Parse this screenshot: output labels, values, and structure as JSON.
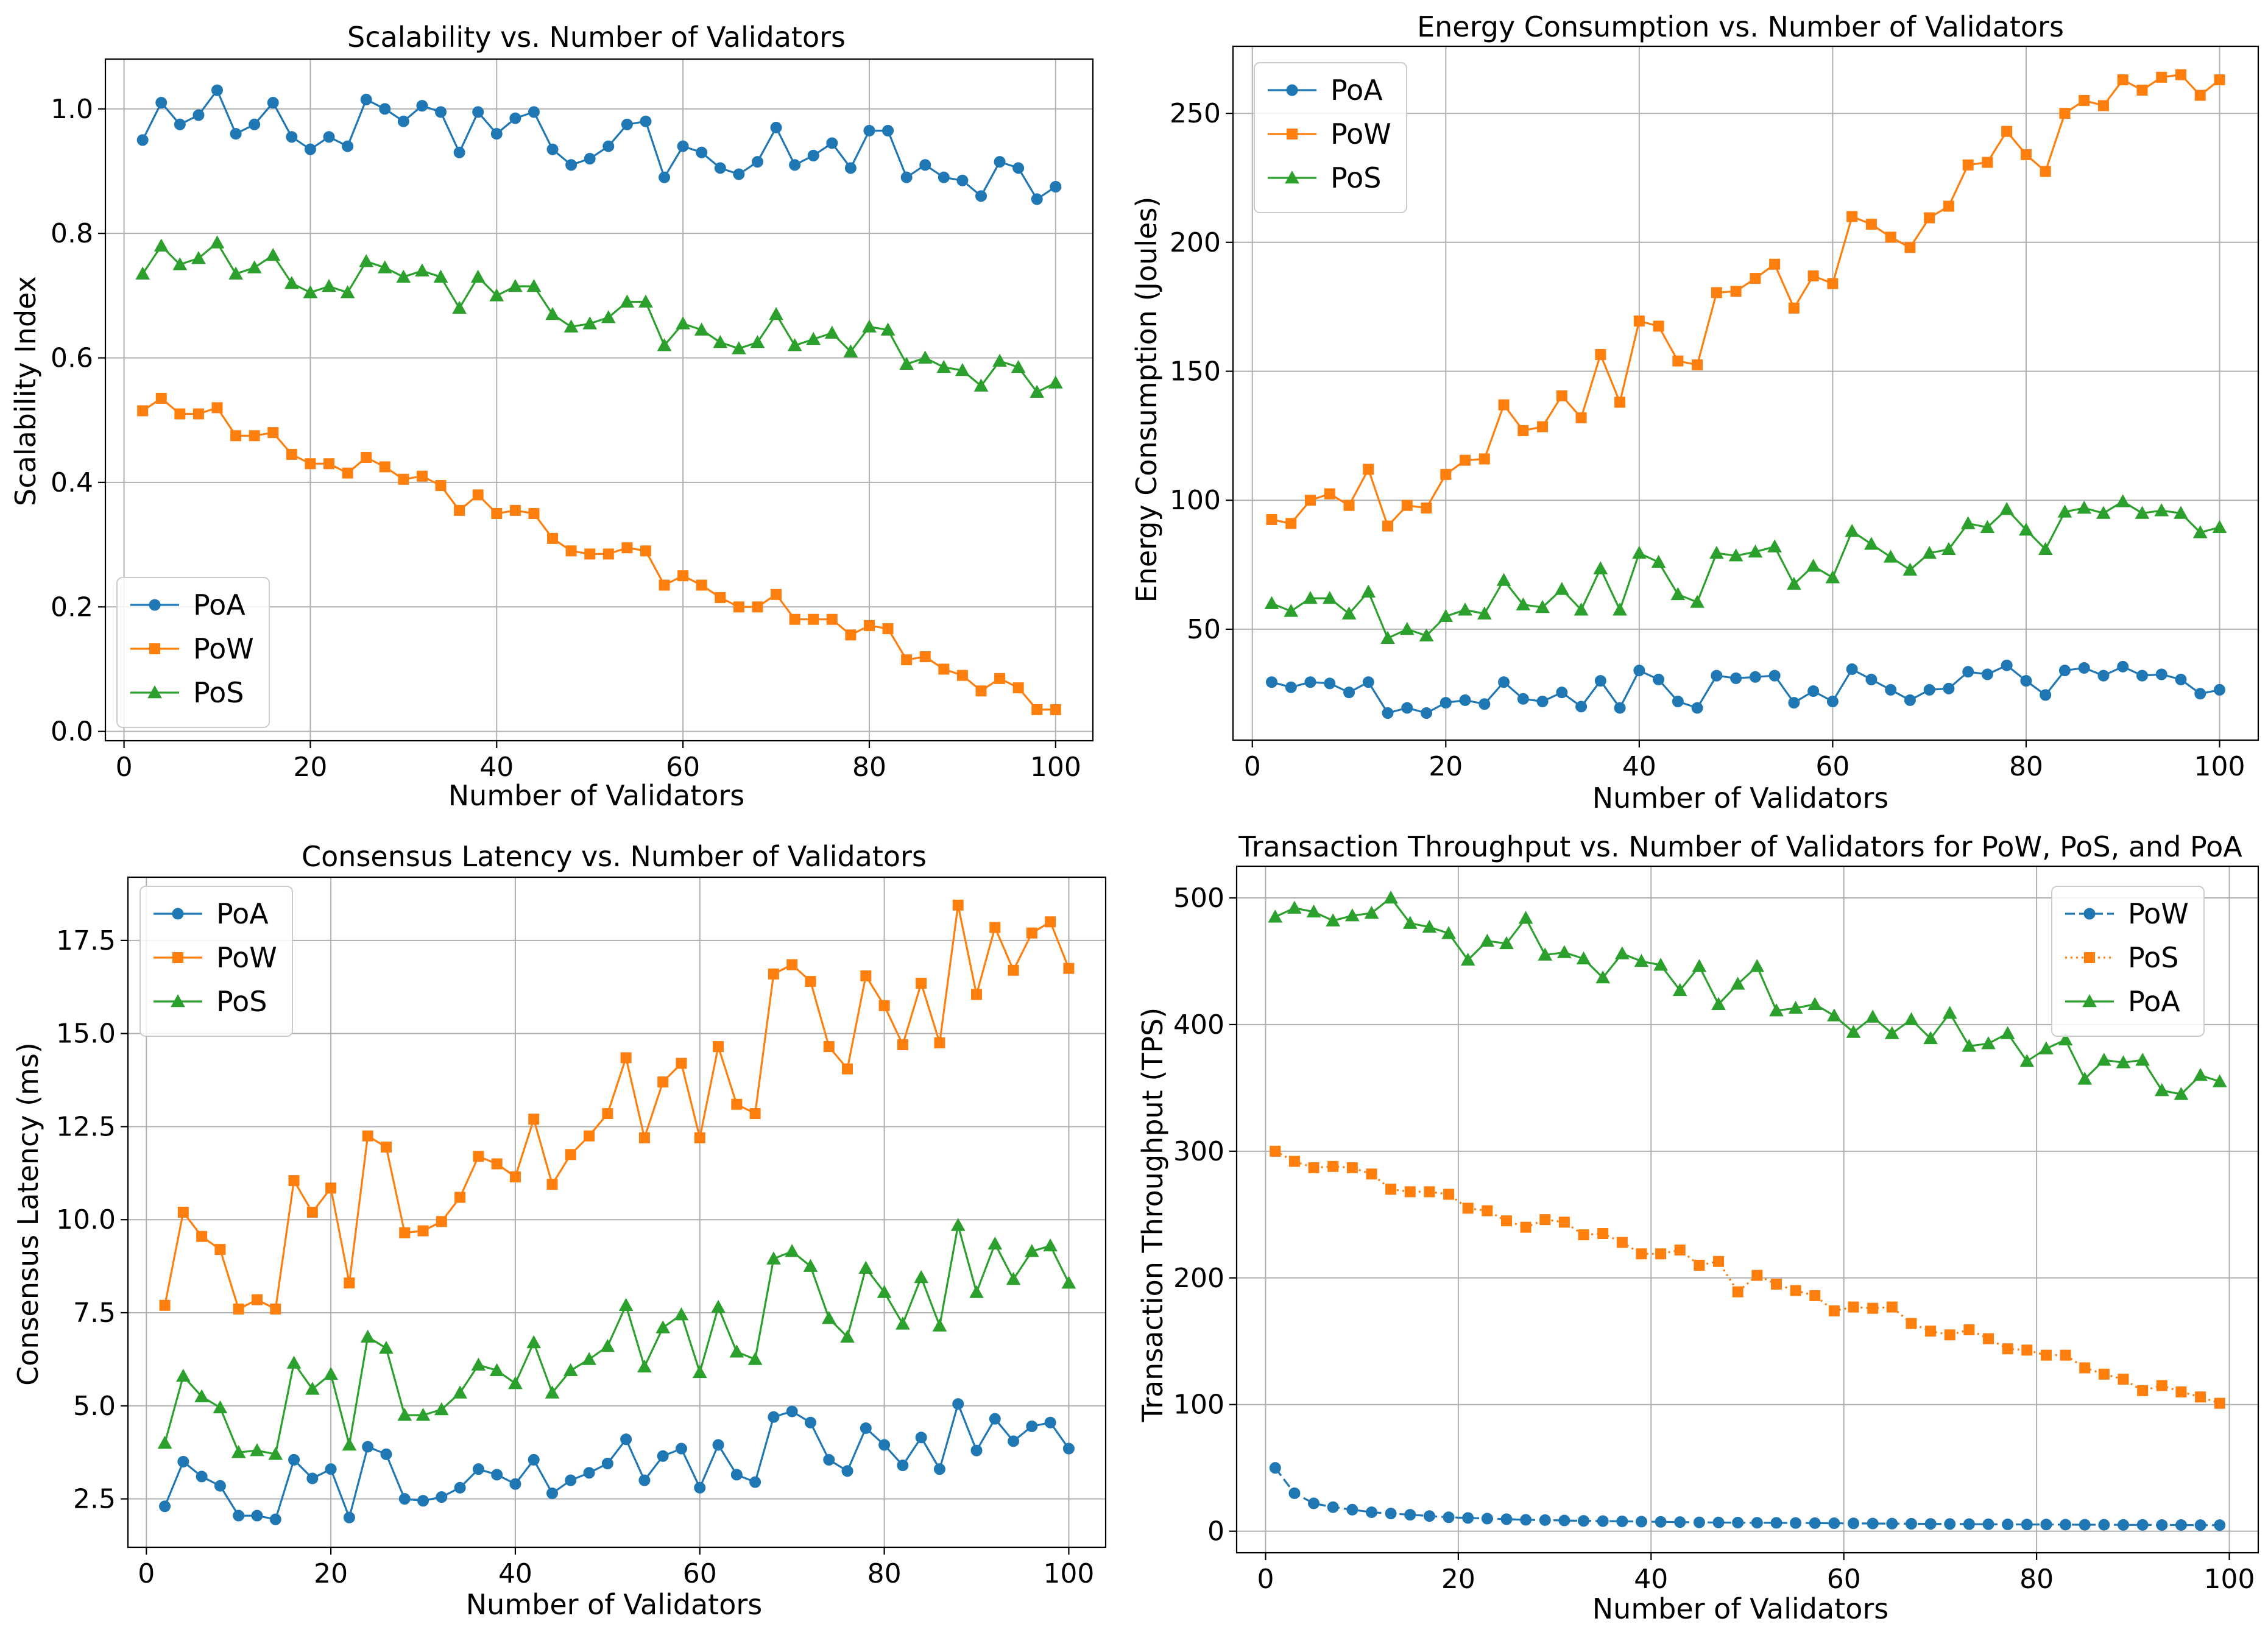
{
  "chart_data": [
    {
      "type": "line",
      "title": "Scalability vs. Number of Validators",
      "xlabel": "Number of Validators",
      "ylabel": "Scalability Index",
      "xlim": [
        -2,
        104
      ],
      "ylim": [
        -0.015,
        1.08
      ],
      "xticks": [
        0,
        20,
        40,
        60,
        80,
        100
      ],
      "xtick_labels": [
        "0",
        "20",
        "40",
        "60",
        "80",
        "100"
      ],
      "yticks": [
        0.0,
        0.2,
        0.4,
        0.6,
        0.8,
        1.0
      ],
      "ytick_labels": [
        "0.0",
        "0.2",
        "0.4",
        "0.6",
        "0.8",
        "1.0"
      ],
      "grid": true,
      "legend_position": "lower-left",
      "x": [
        2,
        4,
        6,
        8,
        10,
        12,
        14,
        16,
        18,
        20,
        22,
        24,
        26,
        28,
        30,
        32,
        34,
        36,
        38,
        40,
        42,
        44,
        46,
        48,
        50,
        52,
        54,
        56,
        58,
        60,
        62,
        64,
        66,
        68,
        70,
        72,
        74,
        76,
        78,
        80,
        82,
        84,
        86,
        88,
        90,
        92,
        94,
        96,
        98,
        100
      ],
      "series": [
        {
          "name": "PoA",
          "color": "#1f77b4",
          "marker": "circle",
          "dash": "solid",
          "values": [
            0.95,
            1.01,
            0.975,
            0.99,
            1.03,
            0.96,
            0.975,
            1.01,
            0.955,
            0.935,
            0.955,
            0.94,
            1.015,
            1.0,
            0.98,
            1.005,
            0.995,
            0.93,
            0.995,
            0.96,
            0.985,
            0.995,
            0.935,
            0.91,
            0.92,
            0.94,
            0.975,
            0.98,
            0.89,
            0.94,
            0.93,
            0.905,
            0.895,
            0.915,
            0.97,
            0.91,
            0.925,
            0.945,
            0.905,
            0.965,
            0.965,
            0.89,
            0.91,
            0.89,
            0.885,
            0.86,
            0.915,
            0.905,
            0.855,
            0.875
          ]
        },
        {
          "name": "PoW",
          "color": "#ff7f0e",
          "marker": "square",
          "dash": "solid",
          "values": [
            0.515,
            0.535,
            0.51,
            0.51,
            0.52,
            0.475,
            0.475,
            0.48,
            0.445,
            0.43,
            0.43,
            0.415,
            0.44,
            0.425,
            0.405,
            0.41,
            0.395,
            0.355,
            0.38,
            0.35,
            0.355,
            0.35,
            0.31,
            0.29,
            0.285,
            0.285,
            0.295,
            0.29,
            0.235,
            0.25,
            0.235,
            0.215,
            0.2,
            0.2,
            0.22,
            0.18,
            0.18,
            0.18,
            0.155,
            0.17,
            0.165,
            0.115,
            0.12,
            0.1,
            0.09,
            0.065,
            0.085,
            0.07,
            0.035,
            0.035
          ]
        },
        {
          "name": "PoS",
          "color": "#2ca02c",
          "marker": "triangle",
          "dash": "solid",
          "values": [
            0.735,
            0.78,
            0.75,
            0.76,
            0.785,
            0.735,
            0.745,
            0.765,
            0.72,
            0.705,
            0.715,
            0.705,
            0.755,
            0.745,
            0.73,
            0.74,
            0.73,
            0.68,
            0.73,
            0.7,
            0.715,
            0.715,
            0.67,
            0.65,
            0.655,
            0.665,
            0.69,
            0.69,
            0.62,
            0.655,
            0.645,
            0.625,
            0.615,
            0.625,
            0.67,
            0.62,
            0.63,
            0.64,
            0.61,
            0.65,
            0.645,
            0.59,
            0.6,
            0.585,
            0.58,
            0.555,
            0.595,
            0.585,
            0.545,
            0.56
          ]
        }
      ]
    },
    {
      "type": "line",
      "title": "Energy Consumption vs. Number of Validators",
      "xlabel": "Number of Validators",
      "ylabel": "Energy Consumption (Joules)",
      "xlim": [
        -2,
        104
      ],
      "ylim": [
        7,
        276
      ],
      "xticks": [
        0,
        20,
        40,
        60,
        80,
        100
      ],
      "xtick_labels": [
        "0",
        "20",
        "40",
        "60",
        "80",
        "100"
      ],
      "yticks": [
        50,
        100,
        150,
        200,
        250
      ],
      "ytick_labels": [
        "50",
        "100",
        "150",
        "200",
        "250"
      ],
      "grid": true,
      "legend_position": "upper-left",
      "x": [
        2,
        4,
        6,
        8,
        10,
        12,
        14,
        16,
        18,
        20,
        22,
        24,
        26,
        28,
        30,
        32,
        34,
        36,
        38,
        40,
        42,
        44,
        46,
        48,
        50,
        52,
        54,
        56,
        58,
        60,
        62,
        64,
        66,
        68,
        70,
        72,
        74,
        76,
        78,
        80,
        82,
        84,
        86,
        88,
        90,
        92,
        94,
        96,
        98,
        100
      ],
      "series": [
        {
          "name": "PoA",
          "color": "#1f77b4",
          "marker": "circle",
          "dash": "solid",
          "values": [
            29.5,
            27.5,
            29.5,
            29,
            25.5,
            29.5,
            17.5,
            19.5,
            17.5,
            21.5,
            22.5,
            21,
            29.5,
            23,
            22,
            25.5,
            20,
            30,
            19.5,
            34,
            30.5,
            22,
            19.5,
            32,
            31,
            31.5,
            32,
            21.5,
            26,
            22,
            34.5,
            30.5,
            26.5,
            22.5,
            26.5,
            27,
            33.5,
            32.5,
            36,
            30,
            24.5,
            34,
            35,
            32,
            35.5,
            32,
            32.5,
            30.5,
            25,
            26.5
          ]
        },
        {
          "name": "PoW",
          "color": "#ff7f0e",
          "marker": "square",
          "dash": "solid",
          "values": [
            92.5,
            91,
            100,
            102.5,
            98,
            112,
            90,
            98,
            97,
            110,
            115.5,
            116,
            137,
            127,
            128.5,
            140.5,
            132,
            156.5,
            138,
            169.5,
            167.5,
            154,
            152.5,
            180.5,
            181,
            186,
            191.5,
            174.5,
            187,
            184,
            210,
            207,
            202,
            198,
            209.5,
            214,
            230,
            231,
            243,
            234,
            227.5,
            250,
            255,
            253,
            263,
            259,
            264,
            265,
            257,
            263
          ]
        },
        {
          "name": "PoS",
          "color": "#2ca02c",
          "marker": "triangle",
          "dash": "solid",
          "values": [
            60,
            57,
            62,
            62,
            56,
            64.5,
            46.5,
            50,
            47.5,
            55,
            57.5,
            56,
            69,
            59.5,
            58.5,
            65.5,
            57.5,
            73.5,
            57.5,
            79.5,
            76,
            63.5,
            60.5,
            79.5,
            78.5,
            80,
            82,
            67.5,
            74.5,
            70,
            88,
            83,
            78,
            73,
            79.5,
            81,
            91,
            89.5,
            96.5,
            88.5,
            81,
            95.5,
            97,
            95,
            99.5,
            95,
            96,
            95,
            87.5,
            89.5
          ]
        }
      ]
    },
    {
      "type": "line",
      "title": "Consensus Latency vs. Number of Validators",
      "xlabel": "Number of Validators",
      "ylabel": "Consensus Latency (ms)",
      "xlim": [
        -2,
        104
      ],
      "ylim": [
        1.2,
        19.2
      ],
      "xticks": [
        0,
        20,
        40,
        60,
        80,
        100
      ],
      "xtick_labels": [
        "0",
        "20",
        "40",
        "60",
        "80",
        "100"
      ],
      "yticks": [
        2.5,
        5.0,
        7.5,
        10.0,
        12.5,
        15.0,
        17.5
      ],
      "ytick_labels": [
        "2.5",
        "5.0",
        "7.5",
        "10.0",
        "12.5",
        "15.0",
        "17.5"
      ],
      "grid": true,
      "legend_position": "upper-left",
      "x": [
        2,
        4,
        6,
        8,
        10,
        12,
        14,
        16,
        18,
        20,
        22,
        24,
        26,
        28,
        30,
        32,
        34,
        36,
        38,
        40,
        42,
        44,
        46,
        48,
        50,
        52,
        54,
        56,
        58,
        60,
        62,
        64,
        66,
        68,
        70,
        72,
        74,
        76,
        78,
        80,
        82,
        84,
        86,
        88,
        90,
        92,
        94,
        96,
        98,
        100
      ],
      "series": [
        {
          "name": "PoA",
          "color": "#1f77b4",
          "marker": "circle",
          "dash": "solid",
          "values": [
            2.3,
            3.5,
            3.1,
            2.85,
            2.05,
            2.05,
            1.95,
            3.55,
            3.05,
            3.3,
            2.0,
            3.9,
            3.7,
            2.5,
            2.45,
            2.55,
            2.8,
            3.3,
            3.15,
            2.9,
            3.55,
            2.65,
            3.0,
            3.2,
            3.45,
            4.1,
            3.0,
            3.65,
            3.85,
            2.8,
            3.95,
            3.15,
            2.95,
            4.7,
            4.85,
            4.55,
            3.55,
            3.25,
            4.4,
            3.95,
            3.4,
            4.15,
            3.3,
            5.05,
            3.8,
            4.65,
            4.05,
            4.45,
            4.55,
            3.85
          ]
        },
        {
          "name": "PoW",
          "color": "#ff7f0e",
          "marker": "square",
          "dash": "solid",
          "values": [
            7.7,
            10.2,
            9.55,
            9.2,
            7.6,
            7.85,
            7.6,
            11.05,
            10.2,
            10.85,
            8.3,
            12.25,
            11.95,
            9.65,
            9.7,
            9.95,
            10.6,
            11.7,
            11.5,
            11.15,
            12.7,
            10.95,
            11.75,
            12.25,
            12.85,
            14.35,
            12.2,
            13.7,
            14.2,
            12.2,
            14.65,
            13.1,
            12.85,
            16.6,
            16.85,
            16.4,
            14.65,
            14.05,
            16.55,
            15.75,
            14.7,
            16.35,
            14.75,
            18.45,
            16.05,
            17.85,
            16.7,
            17.7,
            18.0,
            16.75
          ]
        },
        {
          "name": "PoS",
          "color": "#2ca02c",
          "marker": "triangle",
          "dash": "solid",
          "values": [
            4.0,
            5.8,
            5.25,
            4.95,
            3.75,
            3.8,
            3.7,
            6.15,
            5.45,
            5.85,
            3.95,
            6.85,
            6.55,
            4.75,
            4.75,
            4.9,
            5.35,
            6.1,
            5.95,
            5.6,
            6.7,
            5.35,
            5.95,
            6.25,
            6.6,
            7.7,
            6.05,
            7.1,
            7.45,
            5.9,
            7.65,
            6.45,
            6.25,
            8.95,
            9.15,
            8.75,
            7.35,
            6.85,
            8.7,
            8.05,
            7.2,
            8.45,
            7.15,
            9.85,
            8.05,
            9.35,
            8.4,
            9.15,
            9.3,
            8.3
          ]
        }
      ]
    },
    {
      "type": "line",
      "title": "Transaction Throughput vs. Number of Validators for PoW, PoS, and PoA",
      "xlabel": "Number of Validators",
      "ylabel": "Transaction Throughput (TPS)",
      "xlim": [
        -3,
        103
      ],
      "ylim": [
        -17,
        525
      ],
      "xticks": [
        0,
        20,
        40,
        60,
        80,
        100
      ],
      "xtick_labels": [
        "0",
        "20",
        "40",
        "60",
        "80",
        "100"
      ],
      "yticks": [
        0,
        100,
        200,
        300,
        400,
        500
      ],
      "ytick_labels": [
        "0",
        "100",
        "200",
        "300",
        "400",
        "500"
      ],
      "grid": true,
      "legend_position": "upper-right",
      "x": [
        1,
        3,
        5,
        7,
        9,
        11,
        13,
        15,
        17,
        19,
        21,
        23,
        25,
        27,
        29,
        31,
        33,
        35,
        37,
        39,
        41,
        43,
        45,
        47,
        49,
        51,
        53,
        55,
        57,
        59,
        61,
        63,
        65,
        67,
        69,
        71,
        73,
        75,
        77,
        79,
        81,
        83,
        85,
        87,
        89,
        91,
        93,
        95,
        97,
        99
      ],
      "series": [
        {
          "name": "PoW",
          "color": "#1f77b4",
          "marker": "circle",
          "dash": "dashed",
          "values": [
            50,
            30,
            22,
            19,
            17,
            15,
            14,
            13,
            12,
            11,
            10.5,
            10,
            9.5,
            9,
            8.8,
            8.5,
            8.2,
            8,
            7.8,
            7.6,
            7.4,
            7.2,
            7,
            6.9,
            6.8,
            6.7,
            6.6,
            6.5,
            6.4,
            6.3,
            6.2,
            6.1,
            6,
            5.9,
            5.8,
            5.7,
            5.6,
            5.5,
            5.4,
            5.3,
            5.3,
            5.2,
            5.1,
            5.1,
            5,
            5,
            4.9,
            4.9,
            4.8,
            4.8
          ]
        },
        {
          "name": "PoS",
          "color": "#ff7f0e",
          "marker": "square",
          "dash": "dotted",
          "values": [
            300,
            292,
            287,
            288,
            287,
            282,
            270,
            268,
            268,
            266,
            255,
            253,
            245,
            240,
            246,
            244,
            234,
            235,
            228,
            219,
            219,
            222,
            210,
            213,
            189,
            202,
            195,
            190,
            186,
            174,
            177,
            176,
            177,
            164,
            158,
            155,
            159,
            152,
            144,
            143,
            139,
            139,
            129,
            124,
            120,
            111,
            115,
            110,
            106,
            101
          ]
        },
        {
          "name": "PoA",
          "color": "#2ca02c",
          "marker": "triangle",
          "dash": "solid",
          "values": [
            485,
            492,
            489,
            482,
            486,
            488,
            500,
            480,
            477,
            472,
            451,
            466,
            464,
            484,
            455,
            457,
            452,
            437,
            456,
            450,
            447,
            427,
            446,
            416,
            432,
            446,
            411,
            413,
            416,
            407,
            394,
            406,
            393,
            404,
            389,
            409,
            383,
            385,
            393,
            371,
            381,
            388,
            357,
            372,
            370,
            372,
            348,
            345,
            360,
            355
          ]
        }
      ]
    }
  ]
}
